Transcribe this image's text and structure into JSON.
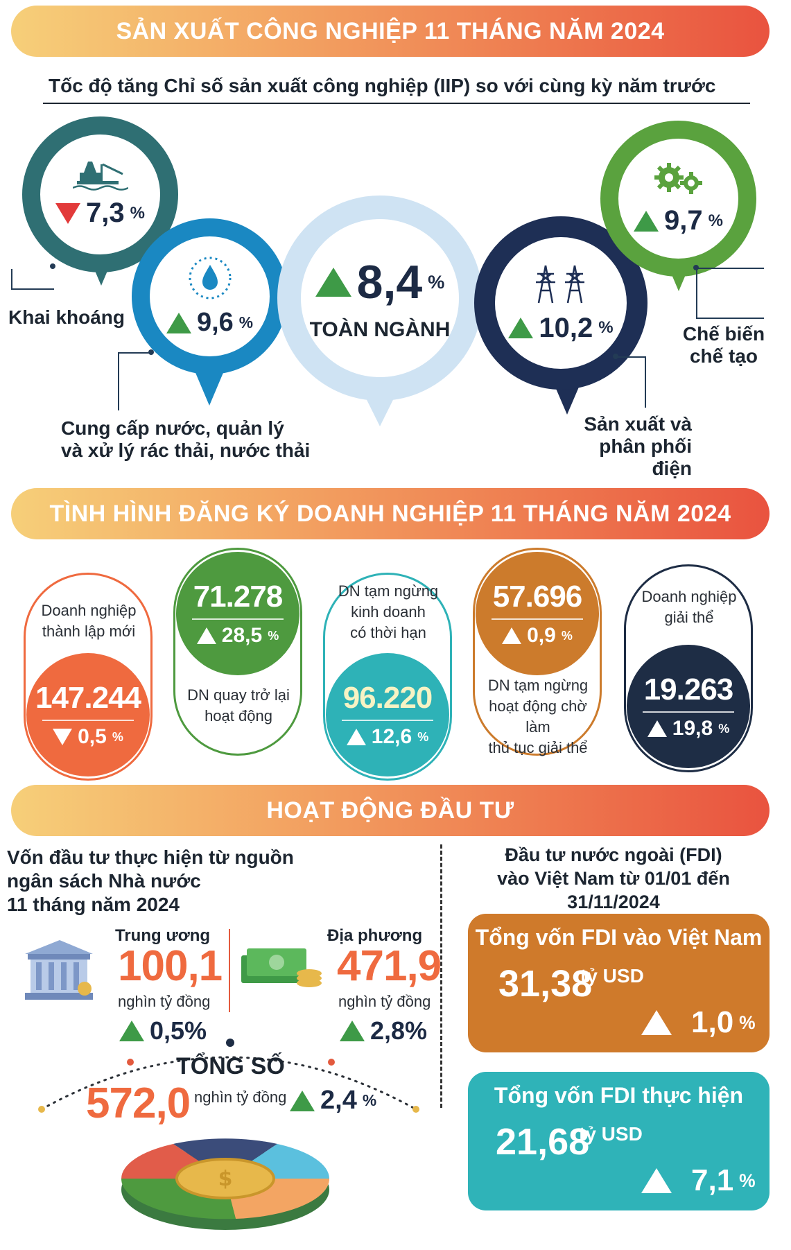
{
  "section1": {
    "banner": "SẢN XUẤT CÔNG NGHIỆP 11 THÁNG NĂM 2024",
    "subtitle": "Tốc độ tăng Chỉ số sản xuất công nghiệp (IIP) so với cùng kỳ năm trước",
    "items": [
      {
        "label": "Khai khoáng",
        "value": "7,3",
        "unit": "%",
        "direction": "down",
        "color": "#2f6f73",
        "icon": "oil-rig-icon"
      },
      {
        "label_line1": "Cung cấp nước, quản lý",
        "label_line2": "và xử lý rác thải, nước thải",
        "value": "9,6",
        "unit": "%",
        "direction": "up",
        "color": "#1a88c2",
        "icon": "water-drop-icon"
      },
      {
        "label": "TOÀN NGÀNH",
        "value": "8,4",
        "unit": "%",
        "direction": "up",
        "color": "#cfe3f3"
      },
      {
        "label_line1": "Sản xuất và",
        "label_line2": "phân phối điện",
        "value": "10,2",
        "unit": "%",
        "direction": "up",
        "color": "#1e2f55",
        "icon": "power-tower-icon"
      },
      {
        "label_line1": "Chế biến",
        "label_line2": "chế tạo",
        "value": "9,7",
        "unit": "%",
        "direction": "up",
        "color": "#5aa23e",
        "icon": "gears-icon"
      }
    ]
  },
  "section2": {
    "banner": "TÌNH HÌNH ĐĂNG KÝ DOANH NGHIỆP 11 THÁNG NĂM 2024",
    "items": [
      {
        "text_line1": "Doanh nghiệp",
        "text_line2": "thành lập mới",
        "value": "147.244",
        "pct": "0,5",
        "unit": "%",
        "direction": "down",
        "color": "#ef6a3f"
      },
      {
        "text_line1": "DN quay trở lại",
        "text_line2": "hoạt động",
        "value": "71.278",
        "pct": "28,5",
        "unit": "%",
        "direction": "up",
        "color": "#4e9a3f"
      },
      {
        "text_line1": "DN tạm ngừng",
        "text_line2": "kinh doanh",
        "text_line3": "có thời hạn",
        "value": "96.220",
        "pct": "12,6",
        "unit": "%",
        "direction": "up",
        "color": "#2eb2b7"
      },
      {
        "text_line1": "DN tạm ngừng",
        "text_line2": "hoạt động chờ làm",
        "text_line3": "thủ tục giải thể",
        "value": "57.696",
        "pct": "0,9",
        "unit": "%",
        "direction": "up",
        "color": "#cc7b2c"
      },
      {
        "text_line1": "Doanh nghiệp",
        "text_line2": "giải thể",
        "value": "19.263",
        "pct": "19,8",
        "unit": "%",
        "direction": "up",
        "color": "#1e2d45"
      }
    ]
  },
  "section3": {
    "banner": "HOẠT ĐỘNG ĐẦU TƯ",
    "left_title_line1": "Vốn đầu tư thực hiện từ nguồn",
    "left_title_line2": "ngân sách Nhà nước",
    "left_title_line3": "11 tháng năm 2024",
    "central": {
      "label": "Trung ương",
      "value": "100,1",
      "unit": "nghìn tỷ đồng",
      "pct": "0,5%",
      "direction": "up",
      "icon": "bank-building-icon"
    },
    "local": {
      "label": "Địa phương",
      "value": "471,9",
      "unit": "nghìn tỷ đồng",
      "pct": "2,8%",
      "direction": "up",
      "icon": "money-icon"
    },
    "total": {
      "label": "TỔNG SỐ",
      "value": "572,0",
      "unit": "nghìn tỷ đồng",
      "pct": "2,4",
      "pct_unit": "%",
      "direction": "up",
      "icon": "coin-pie-icon"
    },
    "right_title_line1": "Đầu tư nước ngoài (FDI)",
    "right_title_line2": "vào Việt Nam từ 01/01 đến 31/11/2024",
    "fdi_registered": {
      "title": "Tổng vốn FDI vào Việt Nam",
      "value": "31,38",
      "unit": "tỷ USD",
      "pct": "1,0",
      "pct_unit": "%",
      "direction": "up",
      "color": "#cf7a2b"
    },
    "fdi_disbursed": {
      "title": "Tổng vốn FDI thực hiện",
      "value": "21,68",
      "unit": "tỷ USD",
      "pct": "7,1",
      "pct_unit": "%",
      "direction": "up",
      "color": "#2fb3b8"
    }
  }
}
